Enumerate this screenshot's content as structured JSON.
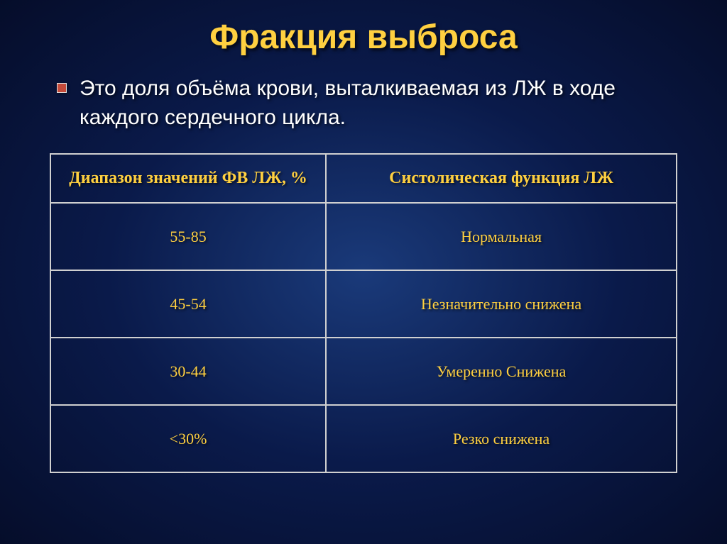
{
  "slide": {
    "title": "Фракция выброса",
    "bullet_text": "Это доля объёма крови, выталкиваемая из ЛЖ в ходе каждого сердечного цикла.",
    "table": {
      "columns": [
        "Диапазон значений ФВ ЛЖ, %",
        "Систолическая функция ЛЖ"
      ],
      "rows": [
        [
          "55-85",
          "Нормальная"
        ],
        [
          "45-54",
          "Незначительно снижена"
        ],
        [
          "30-44",
          "Умеренно Снижена"
        ],
        [
          "<30%",
          "Резко снижена"
        ]
      ],
      "header_color": "#ffd040",
      "cell_color": "#ffd040",
      "border_color": "#d0d0d0",
      "header_fontsize": 24,
      "cell_fontsize": 22,
      "column_widths": [
        "44%",
        "56%"
      ]
    },
    "colors": {
      "title_color": "#ffd040",
      "bullet_text_color": "#ffffff",
      "bullet_marker": "#c44a3a",
      "background_gradient_inner": "#1a3a7a",
      "background_gradient_mid": "#0a1a4a",
      "background_gradient_outer": "#050d2a"
    },
    "typography": {
      "title_fontsize": 48,
      "bullet_fontsize": 30,
      "table_font": "Times New Roman"
    }
  }
}
